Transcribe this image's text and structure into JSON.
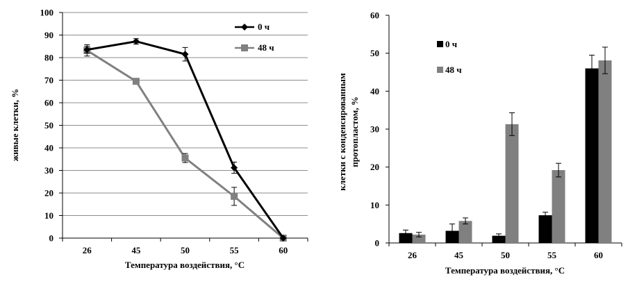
{
  "chart_data": [
    {
      "type": "line",
      "categories": [
        "26",
        "45",
        "50",
        "55",
        "60"
      ],
      "series": [
        {
          "name": "0 ч",
          "values": [
            83.5,
            87.2,
            81.5,
            31.2,
            0
          ],
          "errors": [
            1.5,
            1.2,
            3.0,
            2.5,
            0
          ],
          "color": "#000000",
          "marker": "diamond"
        },
        {
          "name": "48 ч",
          "values": [
            83.2,
            69.5,
            35.5,
            18.5,
            0
          ],
          "errors": [
            2.5,
            1.0,
            2.0,
            4.0,
            0
          ],
          "color": "#808080",
          "marker": "square"
        }
      ],
      "ylim": [
        0,
        100
      ],
      "yticks": [
        "0",
        "10",
        "20",
        "30",
        "40",
        "50",
        "60",
        "70",
        "80",
        "90",
        "100"
      ],
      "xlabel": "Температура воздействия, °С",
      "ylabel": "живые клетки, %",
      "grid": true,
      "legend": "top-right"
    },
    {
      "type": "bar",
      "categories": [
        "26",
        "45",
        "50",
        "55",
        "60"
      ],
      "series": [
        {
          "name": "0 ч",
          "values": [
            2.6,
            3.2,
            1.9,
            7.3,
            46.0
          ],
          "errors": [
            0.8,
            1.8,
            0.5,
            0.8,
            3.5
          ],
          "color": "#000000"
        },
        {
          "name": "48 ч",
          "values": [
            2.2,
            5.8,
            31.3,
            19.2,
            48.1
          ],
          "errors": [
            0.6,
            0.8,
            3.0,
            1.8,
            3.5
          ],
          "color": "#808080"
        }
      ],
      "ylim": [
        0,
        60
      ],
      "yticks": [
        "0",
        "10",
        "20",
        "30",
        "40",
        "50",
        "60"
      ],
      "xlabel": "Температура воздействия, °С",
      "ylabel_line1": "клетки с конденсированным",
      "ylabel_line2": "протопластом, %",
      "grid": false,
      "legend": "top-left"
    }
  ]
}
